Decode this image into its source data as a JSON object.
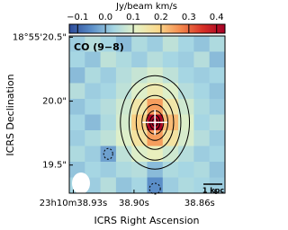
{
  "chart_data": {
    "type": "image",
    "colorbar_title": "Jy/beam km/s",
    "annotation": "CO (9−8)",
    "scalebar_label": "1 kpc",
    "xlabel": "ICRS Right Ascension",
    "ylabel": "ICRS Declination",
    "xlim": [
      38.932,
      38.855
    ],
    "ylim": [
      19.28,
      20.51
    ],
    "xticks": [
      {
        "value": 38.93,
        "label": "23h10m38.93s"
      },
      {
        "value": 38.9,
        "label": "38.90s"
      },
      {
        "value": 38.86,
        "label": "38.86s"
      }
    ],
    "yticks": [
      {
        "value": 20.5,
        "label": "18°55'20.5\""
      },
      {
        "value": 20.0,
        "label": "20.0\""
      },
      {
        "value": 19.5,
        "label": "19.5\""
      }
    ],
    "clim": [
      -0.13,
      0.43
    ],
    "cticks": [
      {
        "value": -0.1,
        "label": "−0.1"
      },
      {
        "value": 0.0,
        "label": "0.0"
      },
      {
        "value": 0.1,
        "label": "0.1"
      },
      {
        "value": 0.2,
        "label": "0.2"
      },
      {
        "value": 0.3,
        "label": "0.3"
      },
      {
        "value": 0.4,
        "label": "0.4"
      }
    ],
    "colormap": [
      "#2c4a9a",
      "#5b8ec8",
      "#a6d6e3",
      "#e6f2c5",
      "#fbd98c",
      "#f48a4e",
      "#d73027",
      "#a50026"
    ],
    "image": [
      [
        0.02,
        0.05,
        0.03,
        0.0,
        0.04,
        0.02,
        0.06,
        0.03,
        0.01,
        0.04
      ],
      [
        0.03,
        0.01,
        0.06,
        0.04,
        0.02,
        0.05,
        0.03,
        0.02,
        0.05,
        0.0
      ],
      [
        0.0,
        0.04,
        0.02,
        0.05,
        0.07,
        0.09,
        0.06,
        0.03,
        0.02,
        0.03
      ],
      [
        0.05,
        0.02,
        0.03,
        0.06,
        0.1,
        0.14,
        0.1,
        0.05,
        0.03,
        0.01
      ],
      [
        0.01,
        0.03,
        0.05,
        0.08,
        0.15,
        0.25,
        0.15,
        0.08,
        0.04,
        0.02
      ],
      [
        0.03,
        0.0,
        0.04,
        0.09,
        0.2,
        0.42,
        0.22,
        0.1,
        0.03,
        0.05
      ],
      [
        0.02,
        0.04,
        0.06,
        0.1,
        0.16,
        0.25,
        0.16,
        0.09,
        0.05,
        0.02
      ],
      [
        0.04,
        0.02,
        -0.03,
        0.06,
        0.1,
        0.12,
        0.08,
        0.05,
        0.02,
        0.03
      ],
      [
        0.01,
        0.03,
        0.02,
        0.04,
        0.05,
        0.0,
        0.04,
        0.03,
        0.04,
        0.01
      ],
      [
        0.03,
        0.02,
        0.05,
        0.01,
        0.03,
        -0.05,
        0.02,
        0.04,
        0.03,
        0.02
      ]
    ]
  }
}
